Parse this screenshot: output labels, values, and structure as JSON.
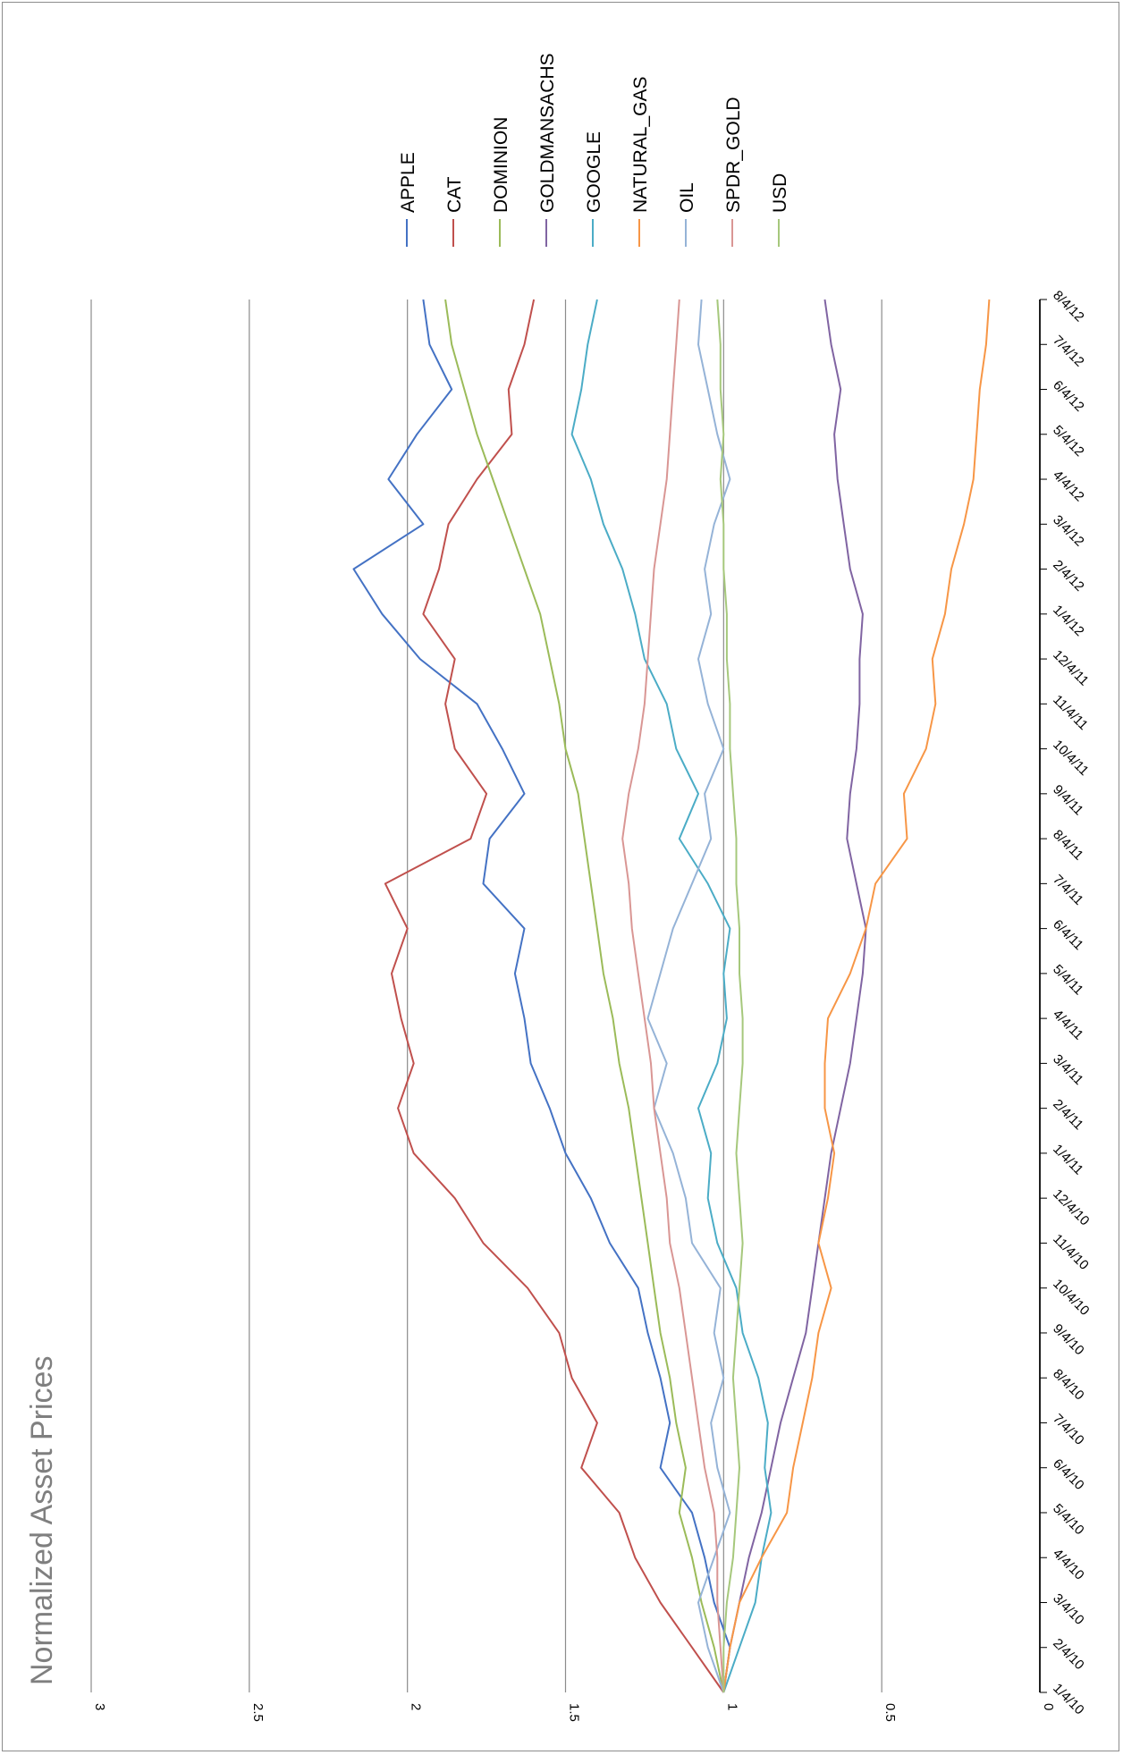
{
  "chart_data": {
    "type": "line",
    "title": "Normalized Asset Prices",
    "xlabel": "",
    "ylabel": "",
    "ylim": [
      0,
      3
    ],
    "y_ticks": [
      "0",
      "0.5",
      "1",
      "1.5",
      "2",
      "2.5",
      "3"
    ],
    "grid": true,
    "legend_position": "right",
    "orientation": "rotated-90-clockwise",
    "x_labels": [
      "1/4/10",
      "2/4/10",
      "3/4/10",
      "4/4/10",
      "5/4/10",
      "6/4/10",
      "7/4/10",
      "8/4/10",
      "9/4/10",
      "10/4/10",
      "11/4/10",
      "12/4/10",
      "1/4/11",
      "2/4/11",
      "3/4/11",
      "4/4/11",
      "5/4/11",
      "6/4/11",
      "7/4/11",
      "8/4/11",
      "9/4/11",
      "10/4/11",
      "11/4/11",
      "12/4/11",
      "1/4/12",
      "2/4/12",
      "3/4/12",
      "4/4/12",
      "5/4/12",
      "6/4/12",
      "7/4/12",
      "8/4/12"
    ],
    "series": [
      {
        "name": "APPLE",
        "color": "#4472c4",
        "values": [
          1.0,
          0.98,
          1.03,
          1.06,
          1.1,
          1.2,
          1.17,
          1.2,
          1.24,
          1.27,
          1.36,
          1.42,
          1.5,
          1.55,
          1.61,
          1.63,
          1.66,
          1.63,
          1.76,
          1.74,
          1.63,
          1.7,
          1.78,
          1.96,
          2.08,
          2.17,
          1.95,
          2.06,
          1.97,
          1.86,
          1.93,
          1.95
        ]
      },
      {
        "name": "CAT",
        "color": "#c0504d",
        "values": [
          1.0,
          1.1,
          1.2,
          1.28,
          1.33,
          1.45,
          1.4,
          1.48,
          1.52,
          1.62,
          1.76,
          1.85,
          1.98,
          2.03,
          1.98,
          2.02,
          2.05,
          2.0,
          2.07,
          1.8,
          1.75,
          1.85,
          1.88,
          1.85,
          1.95,
          1.9,
          1.87,
          1.78,
          1.67,
          1.68,
          1.63,
          1.6
        ]
      },
      {
        "name": "DOMINION",
        "color": "#9bbb59",
        "values": [
          1.0,
          1.03,
          1.07,
          1.1,
          1.14,
          1.12,
          1.15,
          1.17,
          1.2,
          1.22,
          1.24,
          1.26,
          1.28,
          1.3,
          1.33,
          1.35,
          1.38,
          1.4,
          1.42,
          1.44,
          1.46,
          1.5,
          1.52,
          1.55,
          1.58,
          1.63,
          1.68,
          1.73,
          1.78,
          1.82,
          1.86,
          1.88
        ]
      },
      {
        "name": "GOLDMANSACHS",
        "color": "#8064a2",
        "values": [
          1.0,
          0.98,
          0.95,
          0.92,
          0.88,
          0.85,
          0.82,
          0.78,
          0.74,
          0.72,
          0.7,
          0.68,
          0.66,
          0.63,
          0.6,
          0.58,
          0.56,
          0.55,
          0.58,
          0.61,
          0.6,
          0.58,
          0.57,
          0.57,
          0.56,
          0.6,
          0.62,
          0.64,
          0.65,
          0.63,
          0.66,
          0.68
        ]
      },
      {
        "name": "GOOGLE",
        "color": "#4bacc6",
        "values": [
          1.0,
          0.95,
          0.9,
          0.88,
          0.85,
          0.87,
          0.86,
          0.89,
          0.94,
          0.96,
          1.02,
          1.05,
          1.04,
          1.08,
          1.02,
          0.99,
          1.0,
          0.98,
          1.05,
          1.14,
          1.08,
          1.15,
          1.18,
          1.25,
          1.28,
          1.32,
          1.38,
          1.42,
          1.48,
          1.45,
          1.43,
          1.4
        ]
      },
      {
        "name": "NATURAL_GAS",
        "color": "#f79646",
        "values": [
          1.0,
          0.98,
          0.95,
          0.88,
          0.8,
          0.78,
          0.75,
          0.72,
          0.7,
          0.66,
          0.7,
          0.67,
          0.65,
          0.68,
          0.68,
          0.67,
          0.6,
          0.55,
          0.52,
          0.42,
          0.43,
          0.36,
          0.33,
          0.34,
          0.3,
          0.28,
          0.24,
          0.21,
          0.2,
          0.19,
          0.17,
          0.16
        ]
      },
      {
        "name": "OIL",
        "color": "#95b3d7",
        "values": [
          1.0,
          1.05,
          1.08,
          1.03,
          0.98,
          1.02,
          1.04,
          1.0,
          1.03,
          1.01,
          1.1,
          1.12,
          1.16,
          1.22,
          1.18,
          1.24,
          1.2,
          1.16,
          1.1,
          1.04,
          1.06,
          1.0,
          1.05,
          1.08,
          1.04,
          1.06,
          1.03,
          0.98,
          1.02,
          1.05,
          1.08,
          1.07
        ]
      },
      {
        "name": "SPDR_GOLD",
        "color": "#d99694",
        "values": [
          1.0,
          1.01,
          1.02,
          1.02,
          1.03,
          1.06,
          1.08,
          1.1,
          1.12,
          1.14,
          1.17,
          1.18,
          1.2,
          1.22,
          1.23,
          1.25,
          1.27,
          1.29,
          1.3,
          1.32,
          1.3,
          1.27,
          1.25,
          1.24,
          1.23,
          1.22,
          1.2,
          1.18,
          1.17,
          1.16,
          1.15,
          1.14
        ]
      },
      {
        "name": "USD",
        "color": "#a6c87c",
        "values": [
          1.0,
          1.0,
          0.99,
          0.97,
          0.96,
          0.95,
          0.96,
          0.97,
          0.96,
          0.95,
          0.94,
          0.95,
          0.96,
          0.95,
          0.94,
          0.94,
          0.95,
          0.95,
          0.96,
          0.96,
          0.97,
          0.98,
          0.98,
          0.99,
          0.99,
          1.0,
          1.0,
          1.01,
          1.0,
          1.01,
          1.01,
          1.02
        ]
      }
    ]
  }
}
